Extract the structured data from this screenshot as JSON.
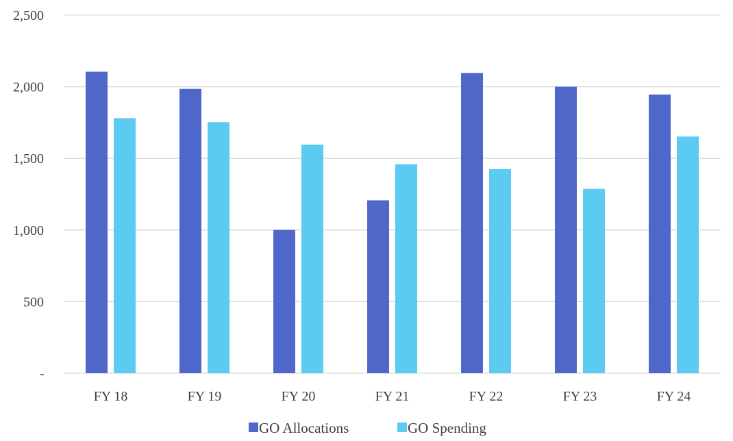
{
  "chart_data": {
    "type": "bar",
    "title": "",
    "xlabel": "",
    "ylabel": "",
    "categories": [
      "FY 18",
      "FY 19",
      "FY 20",
      "FY 21",
      "FY 22",
      "FY 23",
      "FY 24"
    ],
    "series": [
      {
        "name": "GO Allocations",
        "color": "#4f67c9",
        "values": [
          2105,
          1985,
          1000,
          1207,
          2095,
          2000,
          1945
        ]
      },
      {
        "name": "GO Spending",
        "color": "#5bcbf1",
        "values": [
          1780,
          1753,
          1595,
          1458,
          1425,
          1287,
          1652
        ]
      }
    ],
    "ylim": [
      0,
      2500
    ],
    "yticks": [
      0,
      500,
      1000,
      1500,
      2000,
      2500
    ],
    "ytick_labels": [
      "-",
      "500",
      "1,000",
      "1,500",
      "2,000",
      "2,500"
    ],
    "grid": true,
    "legend_position": "bottom"
  }
}
